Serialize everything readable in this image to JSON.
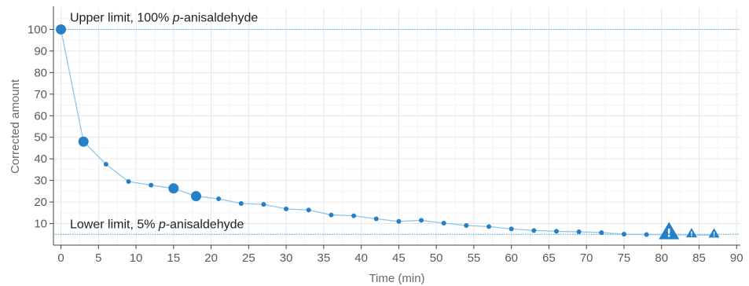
{
  "chart_data": {
    "type": "scatter",
    "xlabel": "Time (min)",
    "ylabel": "Corrected amount",
    "xlim": [
      -1,
      90.5
    ],
    "ylim": [
      0,
      110
    ],
    "xticks": [
      0,
      5,
      10,
      15,
      20,
      25,
      30,
      35,
      40,
      45,
      50,
      55,
      60,
      65,
      70,
      75,
      80,
      85,
      90
    ],
    "yticks": [
      10,
      20,
      30,
      40,
      50,
      60,
      70,
      80,
      90,
      100
    ],
    "grid": true,
    "colors": {
      "line": "#8ec8ea",
      "marker": "#2580c8",
      "guide": "#5eb0e0"
    },
    "reference_lines": [
      {
        "y": 100,
        "label_prefix": "Upper limit, 100% ",
        "label_italic": "p",
        "label_suffix": "-anisaldehyde"
      },
      {
        "y": 5,
        "label_prefix": "Lower limit, 5% ",
        "label_italic": "p",
        "label_suffix": "-anisaldehyde"
      }
    ],
    "series": [
      {
        "points": [
          {
            "x": 0,
            "y": 100,
            "marker": "large-circle"
          },
          {
            "x": 3,
            "y": 48,
            "marker": "large-circle"
          },
          {
            "x": 6,
            "y": 37.5,
            "marker": "small-circle"
          },
          {
            "x": 9,
            "y": 29.5,
            "marker": "small-circle"
          },
          {
            "x": 12,
            "y": 27.8,
            "marker": "small-circle"
          },
          {
            "x": 15,
            "y": 26.3,
            "marker": "large-circle"
          },
          {
            "x": 18,
            "y": 22.7,
            "marker": "large-circle"
          },
          {
            "x": 21,
            "y": 21.5,
            "marker": "small-circle"
          },
          {
            "x": 24,
            "y": 19.3,
            "marker": "small-circle"
          },
          {
            "x": 27,
            "y": 18.9,
            "marker": "small-circle"
          },
          {
            "x": 30,
            "y": 16.8,
            "marker": "small-circle"
          },
          {
            "x": 33,
            "y": 16.3,
            "marker": "small-circle"
          },
          {
            "x": 36,
            "y": 14,
            "marker": "small-circle"
          },
          {
            "x": 39,
            "y": 13.6,
            "marker": "small-circle"
          },
          {
            "x": 42,
            "y": 12.2,
            "marker": "small-circle"
          },
          {
            "x": 45,
            "y": 11,
            "marker": "small-circle"
          },
          {
            "x": 48,
            "y": 11.5,
            "marker": "small-circle"
          },
          {
            "x": 51,
            "y": 10.2,
            "marker": "small-circle"
          },
          {
            "x": 54,
            "y": 9.1,
            "marker": "small-circle"
          },
          {
            "x": 57,
            "y": 8.6,
            "marker": "small-circle"
          },
          {
            "x": 60,
            "y": 7.5,
            "marker": "small-circle"
          },
          {
            "x": 63,
            "y": 6.8,
            "marker": "small-circle"
          },
          {
            "x": 66,
            "y": 6.4,
            "marker": "small-circle"
          },
          {
            "x": 69,
            "y": 6.2,
            "marker": "small-circle"
          },
          {
            "x": 72,
            "y": 5.8,
            "marker": "small-circle"
          },
          {
            "x": 75,
            "y": 5.1,
            "marker": "small-circle"
          },
          {
            "x": 78,
            "y": 4.9,
            "marker": "small-circle"
          },
          {
            "x": 81,
            "y": 4.9,
            "marker": "large-triangle"
          },
          {
            "x": 84,
            "y": 4.7,
            "marker": "small-triangle"
          },
          {
            "x": 87,
            "y": 4.6,
            "marker": "small-triangle"
          }
        ]
      }
    ]
  }
}
